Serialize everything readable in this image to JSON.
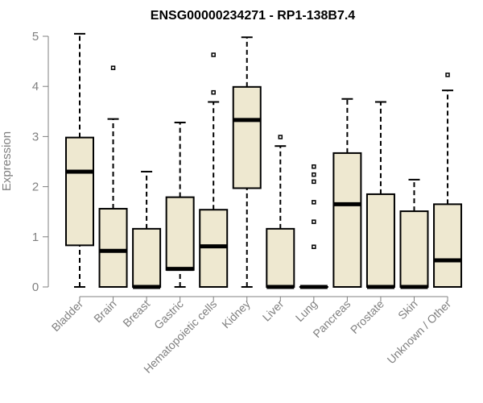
{
  "chart_data": {
    "type": "boxplot",
    "title": "ENSG00000234271 - RP1-138B7.4",
    "ylabel": "Expression",
    "xlabel": "",
    "ylim": [
      0,
      5
    ],
    "yticks": [
      0,
      1,
      2,
      3,
      4,
      5
    ],
    "grid": false,
    "colors": {
      "box_fill": "#EEE8D0",
      "stroke": "#000000",
      "axis_text": "#808080"
    },
    "categories": [
      "Bladder",
      "Brain",
      "Breast",
      "Gastric",
      "Hematopoietic cells",
      "Kidney",
      "Liver",
      "Lung",
      "Pancreas",
      "Prostate",
      "Skin",
      "Unknown / Other"
    ],
    "boxes": [
      {
        "min": 0,
        "q1": 0.83,
        "median": 2.3,
        "q3": 2.98,
        "max": 5.05,
        "outliers": []
      },
      {
        "min": 0,
        "q1": 0,
        "median": 0.72,
        "q3": 1.56,
        "max": 3.35,
        "outliers": [
          4.37
        ]
      },
      {
        "min": 0,
        "q1": 0,
        "median": 0,
        "q3": 1.16,
        "max": 2.3,
        "outliers": []
      },
      {
        "min": 0,
        "q1": 0.34,
        "median": 0.36,
        "q3": 1.79,
        "max": 3.28,
        "outliers": []
      },
      {
        "min": 0,
        "q1": 0,
        "median": 0.81,
        "q3": 1.54,
        "max": 3.69,
        "outliers": [
          3.88,
          4.63
        ]
      },
      {
        "min": 0,
        "q1": 1.97,
        "median": 3.33,
        "q3": 3.99,
        "max": 4.98,
        "outliers": []
      },
      {
        "min": 0,
        "q1": 0,
        "median": 0,
        "q3": 1.16,
        "max": 2.81,
        "outliers": [
          2.99
        ]
      },
      {
        "min": 0,
        "q1": 0,
        "median": 0,
        "q3": 0,
        "max": 0,
        "outliers": [
          0.8,
          1.3,
          1.69,
          2.1,
          2.24,
          2.4
        ]
      },
      {
        "min": 0,
        "q1": 0,
        "median": 1.65,
        "q3": 2.67,
        "max": 3.75,
        "outliers": []
      },
      {
        "min": 0,
        "q1": 0,
        "median": 0,
        "q3": 1.85,
        "max": 3.69,
        "outliers": []
      },
      {
        "min": 0,
        "q1": 0,
        "median": 0,
        "q3": 1.51,
        "max": 2.14,
        "outliers": []
      },
      {
        "min": 0,
        "q1": 0,
        "median": 0.53,
        "q3": 1.65,
        "max": 3.92,
        "outliers": [
          4.23
        ]
      }
    ]
  }
}
